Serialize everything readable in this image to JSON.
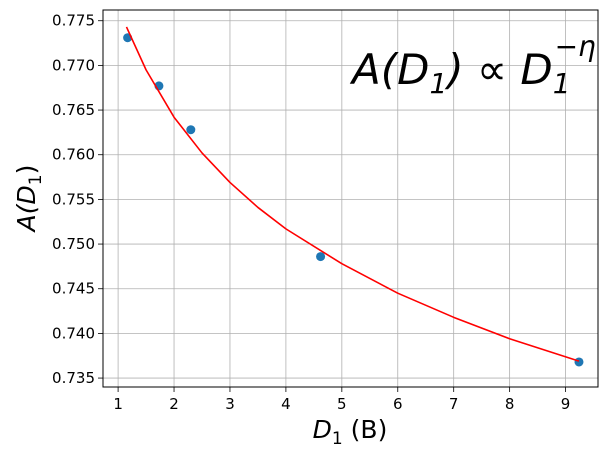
{
  "chart_data": {
    "type": "scatter",
    "xlabel": {
      "base": "D",
      "sub": "1",
      "rest": " (B)"
    },
    "ylabel": {
      "base": "A(D",
      "sub": "1",
      "rest": ")"
    },
    "annotation": {
      "base": "A(D",
      "sub1": "1",
      "mid": ") ∝ D",
      "sub2": "1",
      "exponent": "−η"
    },
    "xlim": [
      0.73,
      9.58
    ],
    "ylim": [
      0.734,
      0.7762
    ],
    "xticks": [
      1,
      2,
      3,
      4,
      5,
      6,
      7,
      8,
      9
    ],
    "yticks": [
      {
        "value": 0.735,
        "label": "0.735"
      },
      {
        "value": 0.74,
        "label": "0.740"
      },
      {
        "value": 0.745,
        "label": "0.745"
      },
      {
        "value": 0.75,
        "label": "0.750"
      },
      {
        "value": 0.755,
        "label": "0.755"
      },
      {
        "value": 0.76,
        "label": "0.760"
      },
      {
        "value": 0.765,
        "label": "0.765"
      },
      {
        "value": 0.77,
        "label": "0.770"
      },
      {
        "value": 0.775,
        "label": "0.775"
      }
    ],
    "grid": true,
    "series": [
      {
        "type": "scatter",
        "color": "#1f77b4",
        "x": [
          1.17,
          1.73,
          2.3,
          4.62,
          9.24
        ],
        "values": [
          0.7731,
          0.7677,
          0.7628,
          0.7486,
          0.7368
        ]
      },
      {
        "type": "line",
        "color": "#ff0000",
        "x": [
          1.15,
          1.5,
          2,
          2.5,
          3,
          3.5,
          4,
          5,
          6,
          7,
          8,
          9.24
        ],
        "values": [
          0.7743,
          0.7695,
          0.7642,
          0.7602,
          0.7569,
          0.7541,
          0.7517,
          0.7478,
          0.7445,
          0.7418,
          0.7394,
          0.7369
        ]
      }
    ]
  }
}
